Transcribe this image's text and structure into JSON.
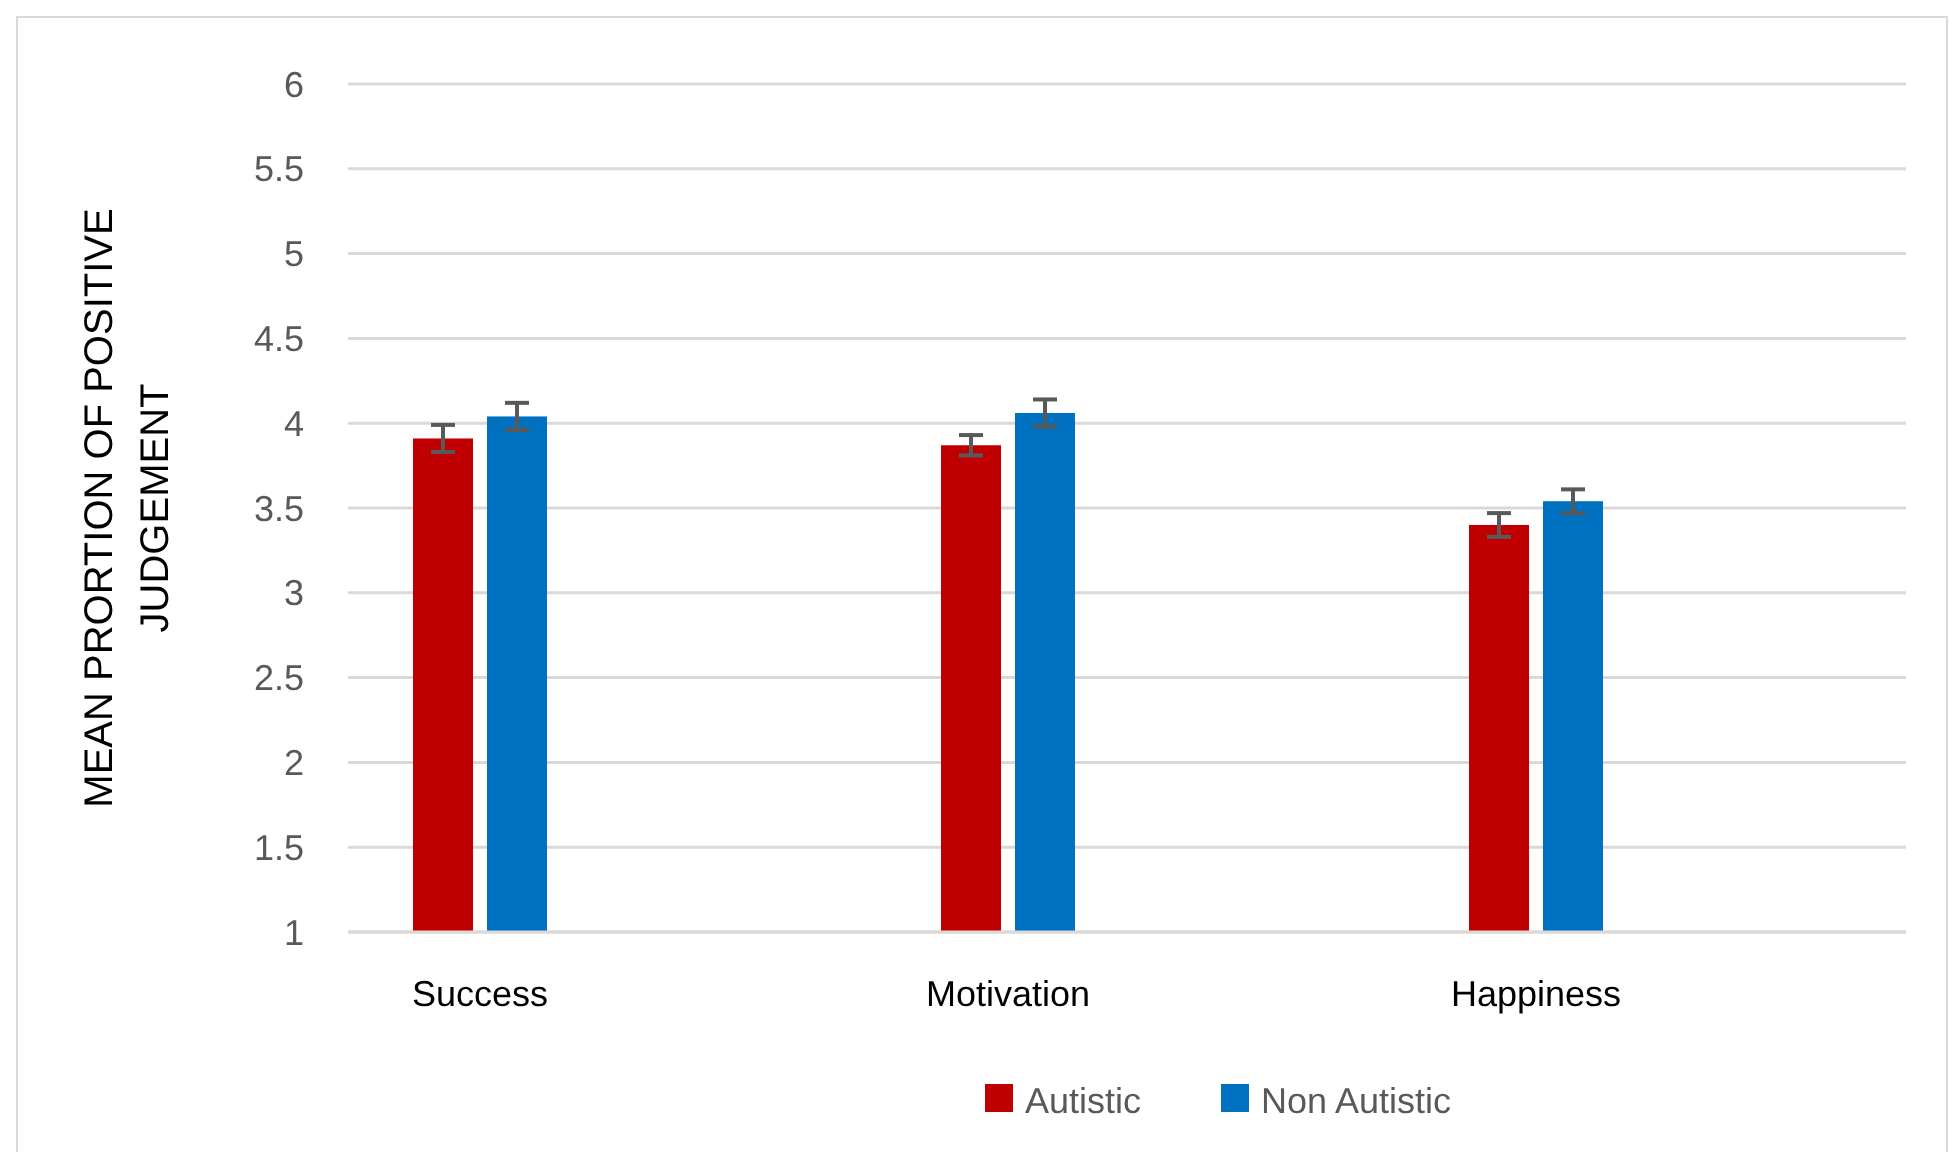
{
  "chart_data": {
    "type": "bar",
    "ylabel": "MEAN PRORTION OF POSITIVE JUDGEMENT",
    "categories": [
      "Success",
      "Motivation",
      "Happiness"
    ],
    "series": [
      {
        "name": "Autistic",
        "color": "#c00000",
        "values": [
          3.91,
          3.87,
          3.4
        ],
        "errors": [
          0.08,
          0.06,
          0.07
        ]
      },
      {
        "name": "Non Autistic",
        "color": "#0070c0",
        "values": [
          4.04,
          4.06,
          3.54
        ],
        "errors": [
          0.08,
          0.08,
          0.07
        ]
      }
    ],
    "ylim": [
      1,
      6
    ],
    "yticks": [
      1,
      1.5,
      2,
      2.5,
      3,
      3.5,
      4,
      4.5,
      5,
      5.5,
      6
    ],
    "grid": "y",
    "legend": "bottom"
  }
}
